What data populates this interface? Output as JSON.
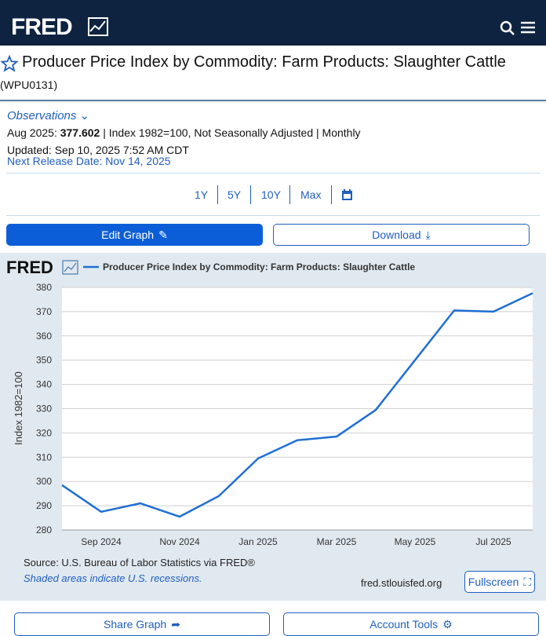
{
  "header": {
    "logo": "FRED"
  },
  "title": "Producer Price Index by Commodity: Farm Products: Slaughter Cattle",
  "series_id": "(WPU0131)",
  "observations": {
    "label": "Observations",
    "date": "Aug 2025:",
    "value": "377.602",
    "details": "| Index 1982=100, Not Seasonally Adjusted | Monthly",
    "updated": "Updated: Sep 10, 2025 7:52 AM CDT",
    "next_release": "Next Release Date: Nov 14, 2025"
  },
  "ranges": [
    "1Y",
    "5Y",
    "10Y",
    "Max"
  ],
  "buttons": {
    "edit": "Edit Graph",
    "download": "Download",
    "share": "Share Graph",
    "account": "Account Tools",
    "fullscreen": "Fullscreen"
  },
  "chart_data": {
    "type": "line",
    "logo": "FRED",
    "categories": [
      null,
      "Sep 2024",
      null,
      "Nov 2024",
      null,
      "Jan 2025",
      null,
      "Mar 2025",
      null,
      "May 2025",
      null,
      "Jul 2025",
      null
    ],
    "series": [
      {
        "name": "Producer Price Index by Commodity: Farm Products: Slaughter Cattle",
        "color": "#1f6fd1",
        "values": [
          298.5,
          287.5,
          291,
          285.5,
          294,
          309.5,
          317,
          318.5,
          329.5,
          350,
          370.5,
          370,
          377.602
        ]
      }
    ],
    "ylabel": "Index 1982=100",
    "ylim": [
      280,
      380
    ],
    "yticks": [
      280,
      290,
      300,
      310,
      320,
      330,
      340,
      350,
      360,
      370,
      380
    ],
    "grid": true,
    "source": "Source: U.S. Bureau of Labor Statistics via FRED®",
    "note": "Shaded areas indicate U.S. recessions.",
    "site": "fred.stlouisfed.org"
  }
}
